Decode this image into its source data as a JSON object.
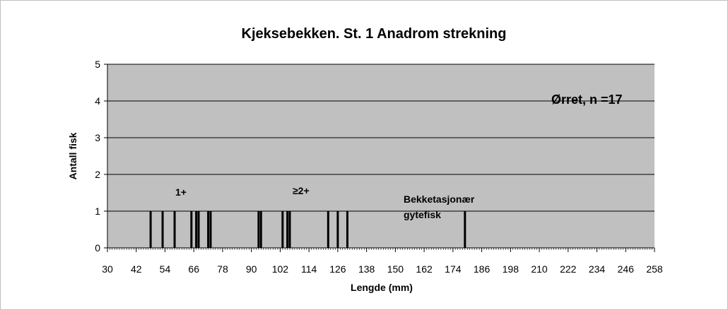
{
  "chart_data": {
    "type": "bar",
    "title": "Kjeksebekken. St. 1 Anadrom strekning",
    "xlabel": "Lengde (mm)",
    "ylabel": "Antall fisk",
    "x": [
      48,
      53,
      58,
      65,
      67,
      68,
      72,
      73,
      93,
      94,
      103,
      105,
      106,
      122,
      126,
      130,
      179
    ],
    "values": [
      1,
      1,
      1,
      1,
      1,
      1,
      1,
      1,
      1,
      1,
      1,
      1,
      1,
      1,
      1,
      1,
      1
    ],
    "color": "#000000",
    "xlim": [
      30,
      258
    ],
    "xticks": [
      30,
      42,
      54,
      66,
      78,
      90,
      102,
      114,
      126,
      138,
      150,
      162,
      174,
      186,
      198,
      210,
      222,
      234,
      246,
      258
    ],
    "ylim": [
      0,
      5
    ],
    "yticks": [
      0,
      1,
      2,
      3,
      4,
      5
    ],
    "grid": true,
    "annotations": [
      {
        "lines": [
          "Ørret, n =17"
        ]
      },
      {
        "lines": [
          "1+"
        ]
      },
      {
        "lines": [
          "≥2+"
        ]
      },
      {
        "lines": [
          "Bekketasjonær",
          "gytefisk"
        ]
      }
    ]
  }
}
